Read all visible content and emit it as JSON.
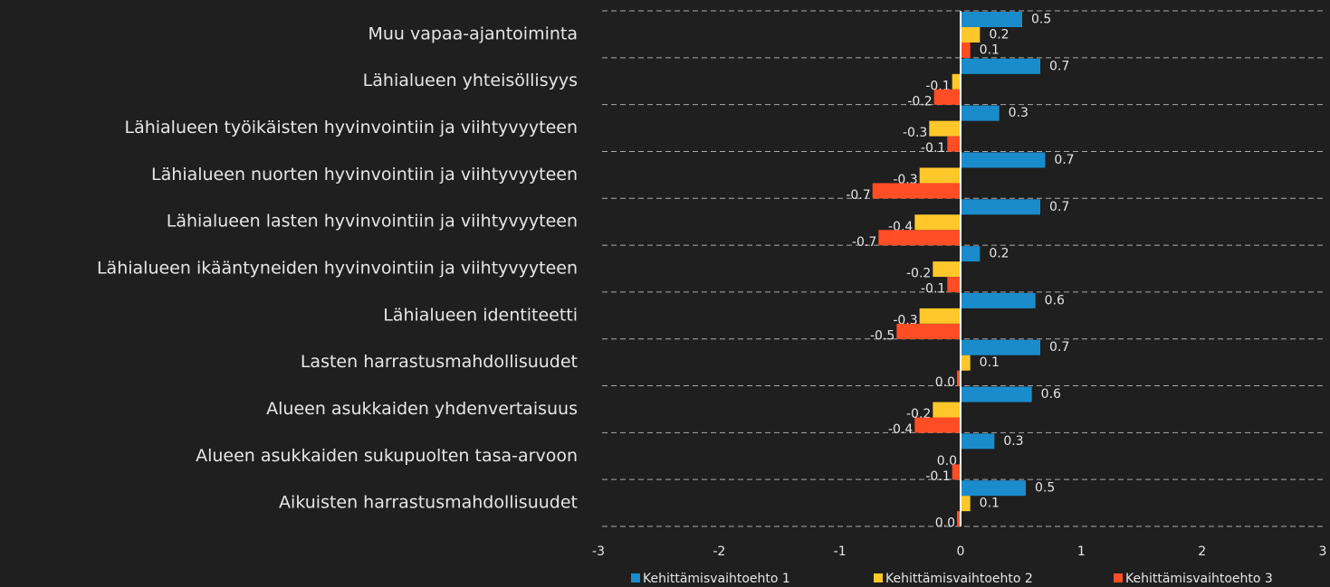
{
  "chart_data": {
    "type": "hbar",
    "categories": [
      "Muu vapaa-ajantoiminta",
      "Lähialueen yhteisöllisyys",
      "Lähialueen työikäisten hyvinvointiin ja viihtyvyyteen",
      "Lähialueen nuorten hyvinvointiin ja viihtyvyyteen",
      "Lähialueen lasten hyvinvointiin ja viihtyvyyteen",
      "Lähialueen ikääntyneiden hyvinvointiin ja viihtyvyyteen",
      "Lähialueen identiteetti",
      "Lasten harrastusmahdollisuudet",
      "Alueen asukkaiden yhdenvertaisuus",
      "Alueen asukkaiden sukupuolten tasa-arvoon",
      "Aikuisten harrastusmahdollisuudet"
    ],
    "series": [
      {
        "name": "Kehittämisvaihtoehto 1",
        "color": "#1a8ccc",
        "values": [
          0.51,
          0.66,
          0.32,
          0.7,
          0.66,
          0.16,
          0.62,
          0.66,
          0.59,
          0.28,
          0.54
        ],
        "value_labels": [
          "0.5",
          "0.7",
          "0.3",
          "0.7",
          "0.7",
          "0.2",
          "0.6",
          "0.7",
          "0.6",
          "0.3",
          "0.5"
        ]
      },
      {
        "name": "Kehittämisvaihtoehto 2",
        "color": "#ffc82a",
        "values": [
          0.16,
          -0.07,
          -0.26,
          -0.34,
          -0.38,
          -0.23,
          -0.34,
          0.08,
          -0.23,
          0,
          0.08
        ],
        "value_labels": [
          "0.2",
          "-0.1",
          "-0.3",
          "-0.3",
          "-0.4",
          "-0.2",
          "-0.3",
          "0.1",
          "-0.2",
          "0.0",
          "0.1"
        ]
      },
      {
        "name": "Kehittämisvaihtoehto 3",
        "color": "#ff4d26",
        "values": [
          0.08,
          -0.22,
          -0.11,
          -0.73,
          -0.68,
          -0.11,
          -0.53,
          -0.03,
          -0.38,
          -0.07,
          -0.03
        ],
        "value_labels": [
          "0.1",
          "-0.2",
          "-0.1",
          "-0.7",
          "-0.7",
          "-0.1",
          "-0.5",
          "0.0",
          "-0.4",
          "-0.1",
          "0.0"
        ]
      }
    ],
    "xlim": [
      -3,
      3
    ],
    "xticks": [
      -3,
      -2,
      -1,
      0,
      1,
      2,
      3
    ],
    "legend": "bottom"
  }
}
